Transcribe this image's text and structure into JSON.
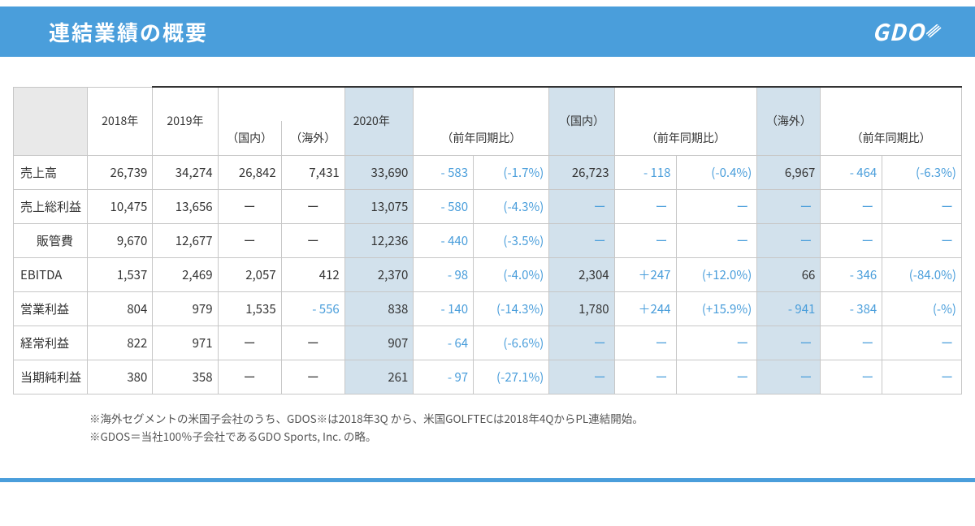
{
  "header": {
    "title": "連結業績の概要",
    "logo_text": "GDO"
  },
  "table": {
    "columns": {
      "y2018": "2018年",
      "y2019": "2019年",
      "domestic": "（国内）",
      "overseas": "（海外）",
      "y2020": "2020年",
      "yoy": "（前年同期比）",
      "dom2": "（国内）",
      "yoy2": "（前年同期比）",
      "ovs2": "（海外）",
      "yoy3": "（前年同期比）"
    },
    "rows": [
      {
        "label": "売上高",
        "indent": false,
        "y2018": "26,739",
        "y2019": "34,274",
        "dom": "26,842",
        "ovs": "7,431",
        "y2020": "33,690",
        "diff": "- 583",
        "pct": "(-1.7%)",
        "dom2": "26,723",
        "dom_diff": "- 118",
        "dom_pct": "(-0.4%)",
        "ovs2": "6,967",
        "ovs_diff": "- 464",
        "ovs_pct": "(-6.3%)"
      },
      {
        "label": "売上総利益",
        "indent": false,
        "y2018": "10,475",
        "y2019": "13,656",
        "dom": "ー",
        "ovs": "ー",
        "y2020": "13,075",
        "diff": "- 580",
        "pct": "(-4.3%)",
        "dom2": "ー",
        "dom_diff": "ー",
        "dom_pct": "ー",
        "ovs2": "ー",
        "ovs_diff": "ー",
        "ovs_pct": "ー"
      },
      {
        "label": "販管費",
        "indent": true,
        "y2018": "9,670",
        "y2019": "12,677",
        "dom": "ー",
        "ovs": "ー",
        "y2020": "12,236",
        "diff": "- 440",
        "pct": "(-3.5%)",
        "dom2": "ー",
        "dom_diff": "ー",
        "dom_pct": "ー",
        "ovs2": "ー",
        "ovs_diff": "ー",
        "ovs_pct": "ー"
      },
      {
        "label": "EBITDA",
        "indent": false,
        "y2018": "1,537",
        "y2019": "2,469",
        "dom": "2,057",
        "ovs": "412",
        "y2020": "2,370",
        "diff": "- 98",
        "pct": "(-4.0%)",
        "dom2": "2,304",
        "dom_diff": "＋247",
        "dom_pct": "(+12.0%)",
        "ovs2": "66",
        "ovs_diff": "- 346",
        "ovs_pct": "(-84.0%)"
      },
      {
        "label": "営業利益",
        "indent": false,
        "y2018": "804",
        "y2019": "979",
        "dom": "1,535",
        "ovs": "- 556",
        "y2020": "838",
        "diff": "- 140",
        "pct": "(-14.3%)",
        "dom2": "1,780",
        "dom_diff": "＋244",
        "dom_pct": "(+15.9%)",
        "ovs2": "- 941",
        "ovs_diff": "- 384",
        "ovs_pct": "(-%)"
      },
      {
        "label": "経常利益",
        "indent": false,
        "y2018": "822",
        "y2019": "971",
        "dom": "ー",
        "ovs": "ー",
        "y2020": "907",
        "diff": "- 64",
        "pct": "(-6.6%)",
        "dom2": "ー",
        "dom_diff": "ー",
        "dom_pct": "ー",
        "ovs2": "ー",
        "ovs_diff": "ー",
        "ovs_pct": "ー"
      },
      {
        "label": "当期純利益",
        "indent": false,
        "y2018": "380",
        "y2019": "358",
        "dom": "ー",
        "ovs": "ー",
        "y2020": "261",
        "diff": "- 97",
        "pct": "(-27.1%)",
        "dom2": "ー",
        "dom_diff": "ー",
        "dom_pct": "ー",
        "ovs2": "ー",
        "ovs_diff": "ー",
        "ovs_pct": "ー"
      }
    ]
  },
  "footnotes": {
    "line1": "※海外セグメントの米国子会社のうち、GDOS※は2018年3Q から、米国GOLFTECは2018年4QからPL連結開始。",
    "line2": "※GDOS＝当社100％子会社であるGDO Sports, Inc. の略。"
  },
  "colors": {
    "accent": "#4a9edb",
    "highlight": "#d2e1ec",
    "border": "#c7c7c7",
    "text": "#333333",
    "corner": "#e9e9e9"
  }
}
